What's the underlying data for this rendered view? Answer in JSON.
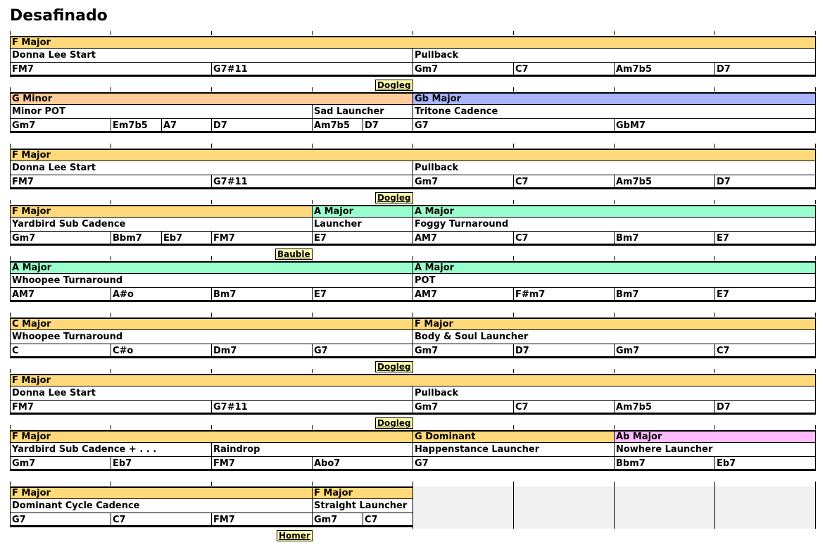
{
  "title": "Desafinado",
  "colors": {
    "major": "#ffd97a",
    "minor": "#ffcc99",
    "gb_major": "#aab4ff",
    "a_major": "#99ffcc",
    "dominant": "#ffd97a",
    "ab_major": "#ffbbff",
    "joiner": "#ffffaa",
    "empty": "#f0f0f0"
  },
  "rows": [
    {
      "keys": [
        {
          "label": "F Major",
          "start": 0,
          "span": 8,
          "color": "major"
        }
      ],
      "bricks": [
        {
          "label": "Donna Lee Start",
          "start": 0,
          "span": 4
        },
        {
          "label": "Pullback",
          "start": 4,
          "span": 4
        }
      ],
      "chords": [
        {
          "label": "FM7",
          "start": 0,
          "span": 2
        },
        {
          "label": "G7#11",
          "start": 2,
          "span": 2
        },
        {
          "label": "Gm7",
          "start": 4,
          "span": 1
        },
        {
          "label": "C7",
          "start": 5,
          "span": 1
        },
        {
          "label": "Am7b5",
          "start": 6,
          "span": 1
        },
        {
          "label": "D7",
          "start": 7,
          "span": 1
        }
      ],
      "joiner": {
        "label": "Dogleg",
        "end": 4
      }
    },
    {
      "keys": [
        {
          "label": "G Minor",
          "start": 0,
          "span": 4,
          "color": "minor"
        },
        {
          "label": "Gb Major",
          "start": 4,
          "span": 4,
          "color": "gb_major"
        }
      ],
      "bricks": [
        {
          "label": "Minor POT",
          "start": 0,
          "span": 3
        },
        {
          "label": "Sad Launcher",
          "start": 3,
          "span": 1
        },
        {
          "label": "Tritone Cadence",
          "start": 4,
          "span": 4
        }
      ],
      "chords": [
        {
          "label": "Gm7",
          "start": 0,
          "span": 1
        },
        {
          "label": "Em7b5",
          "start": 1,
          "span": 0.5
        },
        {
          "label": "A7",
          "start": 1.5,
          "span": 0.5
        },
        {
          "label": "D7",
          "start": 2,
          "span": 1
        },
        {
          "label": "Am7b5",
          "start": 3,
          "span": 0.5
        },
        {
          "label": "D7",
          "start": 3.5,
          "span": 0.5
        },
        {
          "label": "G7",
          "start": 4,
          "span": 2
        },
        {
          "label": "GbM7",
          "start": 6,
          "span": 2
        }
      ]
    },
    {
      "keys": [
        {
          "label": "F Major",
          "start": 0,
          "span": 8,
          "color": "major"
        }
      ],
      "bricks": [
        {
          "label": "Donna Lee Start",
          "start": 0,
          "span": 4
        },
        {
          "label": "Pullback",
          "start": 4,
          "span": 4
        }
      ],
      "chords": [
        {
          "label": "FM7",
          "start": 0,
          "span": 2
        },
        {
          "label": "G7#11",
          "start": 2,
          "span": 2
        },
        {
          "label": "Gm7",
          "start": 4,
          "span": 1
        },
        {
          "label": "C7",
          "start": 5,
          "span": 1
        },
        {
          "label": "Am7b5",
          "start": 6,
          "span": 1
        },
        {
          "label": "D7",
          "start": 7,
          "span": 1
        }
      ],
      "joiner": {
        "label": "Dogleg",
        "end": 4
      }
    },
    {
      "keys": [
        {
          "label": "F Major",
          "start": 0,
          "span": 3,
          "color": "major"
        },
        {
          "label": "A Major",
          "start": 3,
          "span": 1,
          "color": "a_major"
        },
        {
          "label": "A Major",
          "start": 4,
          "span": 4,
          "color": "a_major"
        }
      ],
      "bricks": [
        {
          "label": "Yardbird Sub Cadence",
          "start": 0,
          "span": 3
        },
        {
          "label": "Launcher",
          "start": 3,
          "span": 1
        },
        {
          "label": "Foggy Turnaround",
          "start": 4,
          "span": 4
        }
      ],
      "chords": [
        {
          "label": "Gm7",
          "start": 0,
          "span": 1
        },
        {
          "label": "Bbm7",
          "start": 1,
          "span": 0.5
        },
        {
          "label": "Eb7",
          "start": 1.5,
          "span": 0.5
        },
        {
          "label": "FM7",
          "start": 2,
          "span": 1
        },
        {
          "label": "E7",
          "start": 3,
          "span": 1
        },
        {
          "label": "AM7",
          "start": 4,
          "span": 1
        },
        {
          "label": "C7",
          "start": 5,
          "span": 1
        },
        {
          "label": "Bm7",
          "start": 6,
          "span": 1
        },
        {
          "label": "E7",
          "start": 7,
          "span": 1
        }
      ],
      "joiner": {
        "label": "Bauble",
        "end": 3
      }
    },
    {
      "keys": [
        {
          "label": "A Major",
          "start": 0,
          "span": 4,
          "color": "a_major"
        },
        {
          "label": "A Major",
          "start": 4,
          "span": 4,
          "color": "a_major"
        }
      ],
      "bricks": [
        {
          "label": "Whoopee Turnaround",
          "start": 0,
          "span": 4
        },
        {
          "label": "POT",
          "start": 4,
          "span": 4
        }
      ],
      "chords": [
        {
          "label": "AM7",
          "start": 0,
          "span": 1
        },
        {
          "label": "A#o",
          "start": 1,
          "span": 1
        },
        {
          "label": "Bm7",
          "start": 2,
          "span": 1
        },
        {
          "label": "E7",
          "start": 3,
          "span": 1
        },
        {
          "label": "AM7",
          "start": 4,
          "span": 1
        },
        {
          "label": "F#m7",
          "start": 5,
          "span": 1
        },
        {
          "label": "Bm7",
          "start": 6,
          "span": 1
        },
        {
          "label": "E7",
          "start": 7,
          "span": 1
        }
      ]
    },
    {
      "keys": [
        {
          "label": "C Major",
          "start": 0,
          "span": 4,
          "color": "major"
        },
        {
          "label": "F Major",
          "start": 4,
          "span": 4,
          "color": "major"
        }
      ],
      "bricks": [
        {
          "label": "Whoopee Turnaround",
          "start": 0,
          "span": 4
        },
        {
          "label": "Body & Soul Launcher",
          "start": 4,
          "span": 4
        }
      ],
      "chords": [
        {
          "label": "C",
          "start": 0,
          "span": 1
        },
        {
          "label": "C#o",
          "start": 1,
          "span": 1
        },
        {
          "label": "Dm7",
          "start": 2,
          "span": 1
        },
        {
          "label": "G7",
          "start": 3,
          "span": 1
        },
        {
          "label": "Gm7",
          "start": 4,
          "span": 1
        },
        {
          "label": "D7",
          "start": 5,
          "span": 1
        },
        {
          "label": "Gm7",
          "start": 6,
          "span": 1
        },
        {
          "label": "C7",
          "start": 7,
          "span": 1
        }
      ],
      "joiner": {
        "label": "Dogleg",
        "end": 4
      }
    },
    {
      "keys": [
        {
          "label": "F Major",
          "start": 0,
          "span": 8,
          "color": "major"
        }
      ],
      "bricks": [
        {
          "label": "Donna Lee Start",
          "start": 0,
          "span": 4
        },
        {
          "label": "Pullback",
          "start": 4,
          "span": 4
        }
      ],
      "chords": [
        {
          "label": "FM7",
          "start": 0,
          "span": 2
        },
        {
          "label": "G7#11",
          "start": 2,
          "span": 2
        },
        {
          "label": "Gm7",
          "start": 4,
          "span": 1
        },
        {
          "label": "C7",
          "start": 5,
          "span": 1
        },
        {
          "label": "Am7b5",
          "start": 6,
          "span": 1
        },
        {
          "label": "D7",
          "start": 7,
          "span": 1
        }
      ],
      "joiner": {
        "label": "Dogleg",
        "end": 4
      }
    },
    {
      "keys": [
        {
          "label": "F Major",
          "start": 0,
          "span": 4,
          "color": "major"
        },
        {
          "label": "G Dominant",
          "start": 4,
          "span": 2,
          "color": "dominant"
        },
        {
          "label": "Ab Major",
          "start": 6,
          "span": 2,
          "color": "ab_major"
        }
      ],
      "bricks": [
        {
          "label": "Yardbird Sub Cadence + . . .",
          "start": 0,
          "span": 2
        },
        {
          "label": "Raindrop",
          "start": 2,
          "span": 2
        },
        {
          "label": "Happenstance Launcher",
          "start": 4,
          "span": 2
        },
        {
          "label": "Nowhere Launcher",
          "start": 6,
          "span": 2
        }
      ],
      "chords": [
        {
          "label": "Gm7",
          "start": 0,
          "span": 1
        },
        {
          "label": "Eb7",
          "start": 1,
          "span": 1
        },
        {
          "label": "FM7",
          "start": 2,
          "span": 1
        },
        {
          "label": "Abo7",
          "start": 3,
          "span": 1
        },
        {
          "label": "G7",
          "start": 4,
          "span": 2
        },
        {
          "label": "Bbm7",
          "start": 6,
          "span": 1
        },
        {
          "label": "Eb7",
          "start": 7,
          "span": 1
        }
      ]
    },
    {
      "keys": [
        {
          "label": "F Major",
          "start": 0,
          "span": 3,
          "color": "major"
        },
        {
          "label": "F Major",
          "start": 3,
          "span": 1,
          "color": "major"
        }
      ],
      "bricks": [
        {
          "label": "Dominant Cycle Cadence",
          "start": 0,
          "span": 3
        },
        {
          "label": "Straight Launcher",
          "start": 3,
          "span": 1
        }
      ],
      "chords": [
        {
          "label": "G7",
          "start": 0,
          "span": 1
        },
        {
          "label": "C7",
          "start": 1,
          "span": 1
        },
        {
          "label": "FM7",
          "start": 2,
          "span": 1
        },
        {
          "label": "Gm7",
          "start": 3,
          "span": 0.5
        },
        {
          "label": "C7",
          "start": 3.5,
          "span": 0.5
        }
      ],
      "joiner": {
        "label": "Homer",
        "end": 3
      },
      "empty": {
        "start": 4,
        "span": 4
      }
    }
  ]
}
